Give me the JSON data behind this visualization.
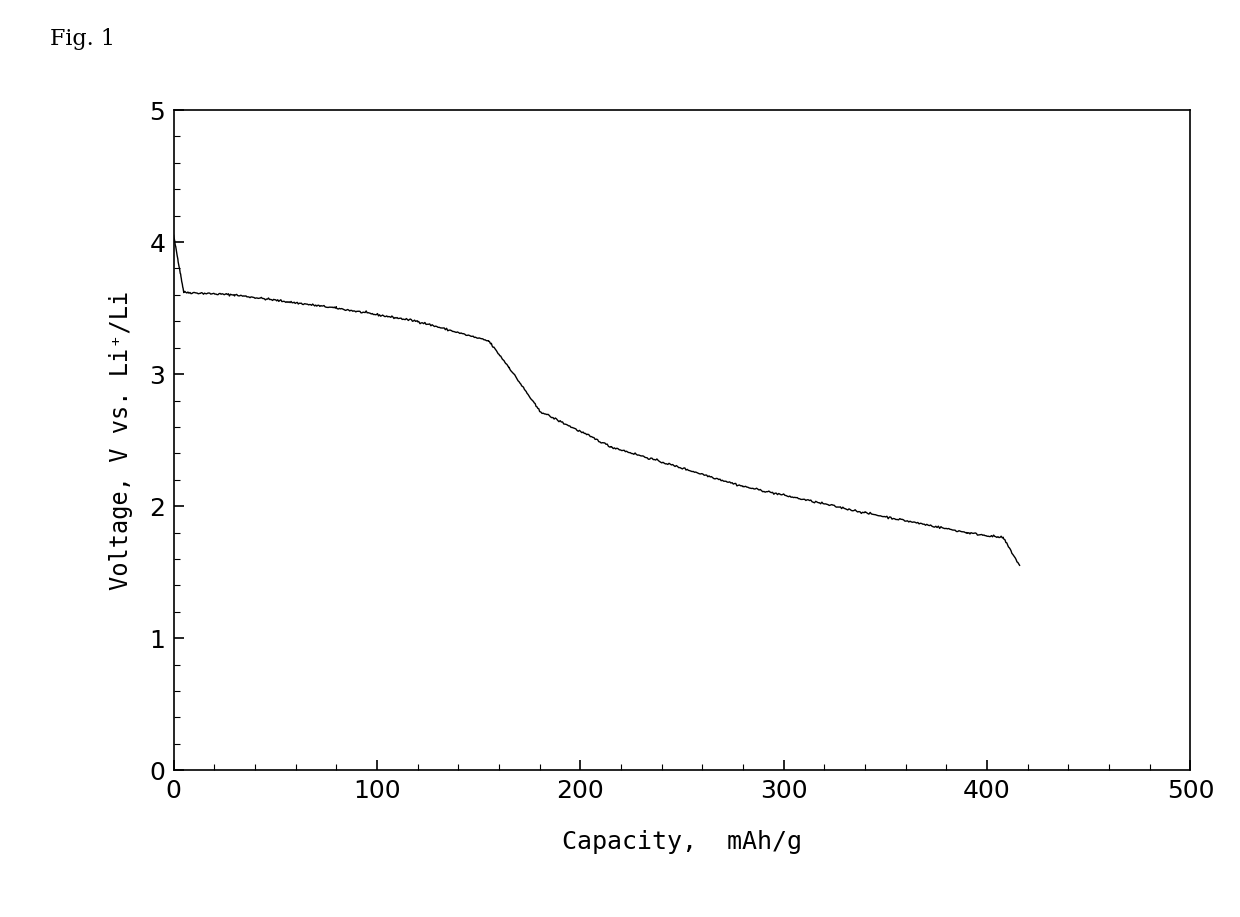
{
  "xlabel": "Capacity,  mAh/g",
  "ylabel": "Voltage, V vs. Li⁺/Li",
  "xlim": [
    0,
    500
  ],
  "ylim": [
    0,
    5
  ],
  "xticks": [
    0,
    100,
    200,
    300,
    400,
    500
  ],
  "yticks": [
    0,
    1,
    2,
    3,
    4,
    5
  ],
  "line_color": "#000000",
  "background_color": "#ffffff",
  "fig_label": "Fig. 1"
}
